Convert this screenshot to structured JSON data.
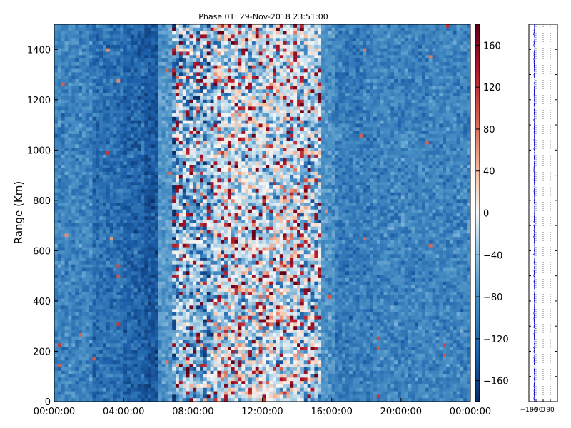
{
  "chart_data": [
    {
      "type": "heatmap",
      "title": "Phase 01: 29-Nov-2018 23:51:00",
      "xlabel": "",
      "ylabel": "Range (Km)",
      "x_ticks": [
        "00:00:00",
        "04:00:00",
        "08:00:00",
        "12:00:00",
        "16:00:00",
        "20:00:00",
        "00:00:00"
      ],
      "x_range_hours": [
        0,
        24
      ],
      "y_ticks": [
        0,
        200,
        400,
        600,
        800,
        1000,
        1200,
        1400
      ],
      "ylim": [
        0,
        1500
      ],
      "zlim": [
        -180,
        180
      ],
      "grid": false,
      "colormap": "RdBu_r",
      "colorbar": {
        "ticks": [
          160,
          120,
          80,
          40,
          0,
          -40,
          -80,
          -120,
          -160
        ],
        "tick_labels": [
          "160",
          "120",
          "80",
          "40",
          "0",
          "−40",
          "−80",
          "−120",
          "−160"
        ],
        "range": [
          -180,
          180
        ]
      },
      "column_profile": {
        "description_hours": [
          [
            0,
            2.3,
            -110
          ],
          [
            2.3,
            4.0,
            -125
          ],
          [
            4.0,
            5.2,
            -135
          ],
          [
            5.2,
            6.0,
            -145
          ],
          [
            6.0,
            7.0,
            -95
          ],
          [
            7.0,
            8.2,
            -60
          ],
          [
            8.2,
            9.3,
            -70
          ],
          [
            9.3,
            12.0,
            -30
          ],
          [
            12.0,
            14.0,
            -25
          ],
          [
            14.0,
            15.5,
            -45
          ],
          [
            15.5,
            16.2,
            -100
          ],
          [
            16.2,
            18.5,
            -115
          ],
          [
            18.5,
            24.0,
            -110
          ]
        ]
      }
    },
    {
      "type": "line",
      "title": "",
      "x_ticks": [
        "−180",
        "−90",
        "0",
        "90"
      ],
      "xlim": [
        -180,
        180
      ],
      "ylim": [
        0,
        1500
      ],
      "color": "#0000cc",
      "approx_value": -110
    }
  ]
}
